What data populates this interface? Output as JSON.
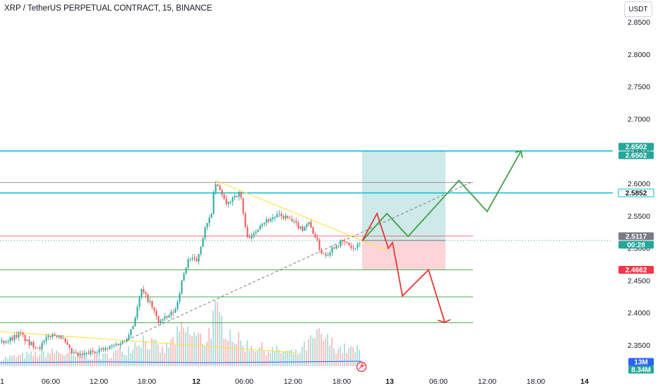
{
  "header": {
    "title": "XRP / TetherUS PERPETUAL CONTRACT, 15, BINANCE",
    "currency_label": "USDT"
  },
  "price_axis": {
    "ticks": [
      2.85,
      2.8,
      2.75,
      2.7,
      2.65,
      2.6,
      2.55,
      2.5,
      2.45,
      2.4,
      2.35
    ],
    "tick_labels": [
      "2.8500",
      "2.8000",
      "2.7500",
      "2.7000",
      "2.6500",
      "2.6000",
      "2.5500",
      "2.5000",
      "2.4500",
      "2.4000",
      "2.3500"
    ]
  },
  "time_axis": {
    "labels": [
      "1",
      "06:00",
      "12:00",
      "18:00",
      "12",
      "06:00",
      "12:00",
      "18:00",
      "13",
      "06:00",
      "12:00",
      "18:00",
      "14"
    ],
    "bold_labels": [
      "12",
      "13",
      "14"
    ]
  },
  "badges": [
    {
      "text": "2.6502",
      "bg": "#26a69a",
      "fg": "#ffffff",
      "price": 2.6502,
      "stack": "upper"
    },
    {
      "text": "2.6502",
      "bg": "#26a69a",
      "fg": "#ffffff",
      "price": 2.6502,
      "stack": "lower"
    },
    {
      "text": "2.5852",
      "bg": "#ffffff",
      "fg": "#131722",
      "border": "#00bcd4",
      "price": 2.5852
    },
    {
      "text": "2.5117",
      "bg": "#787b86",
      "fg": "#ffffff",
      "price": 2.5117,
      "stack": "upper"
    },
    {
      "text": "00:28",
      "bg": "#26a69a",
      "fg": "#ffffff",
      "price": 2.5117,
      "stack": "lower"
    },
    {
      "text": "2.4662",
      "bg": "#f23645",
      "fg": "#ffffff",
      "price": 2.4662
    },
    {
      "text": "13M",
      "bg": "#2962ff",
      "fg": "#ffffff",
      "volume_row": "upper"
    },
    {
      "text": "8.34M",
      "bg": "#26a69a",
      "fg": "#ffffff",
      "volume_row": "lower"
    }
  ],
  "colors": {
    "up": "#26a69a",
    "down": "#ef5350",
    "cyan_line": "#00bcd4",
    "green_line": "#4caf50",
    "red_line": "#f23645",
    "gray_line": "#9598a1",
    "trend_yellow": "#ffe352",
    "target_zone": "#b2dfdb",
    "stop_zone": "#f9c7cb",
    "arrow_green": "#43a047",
    "arrow_red": "#e53935",
    "volume_ma": "#2962ff"
  },
  "chart_data": {
    "type": "candlestick",
    "title": "XRP / TetherUS PERPETUAL CONTRACT, 15, BINANCE",
    "price_range": [
      2.328,
      2.87
    ],
    "horizontal_levels": [
      {
        "price": 2.6502,
        "color": "cyan"
      },
      {
        "price": 2.6015,
        "color": "gray"
      },
      {
        "price": 2.5852,
        "color": "cyan"
      },
      {
        "price": 2.5185,
        "color": "red"
      },
      {
        "price": 2.4662,
        "color": "green"
      },
      {
        "price": 2.4244,
        "color": "green"
      },
      {
        "price": 2.3844,
        "color": "green"
      }
    ],
    "last_price": 2.5117,
    "countdown": "00:28",
    "position": {
      "entry": 2.511,
      "target": 2.6502,
      "stop": 2.4662
    },
    "projected_paths": [
      {
        "direction": "up",
        "points": [
          2.511,
          2.5535,
          2.518,
          2.5555,
          2.5195,
          2.6045,
          2.5565,
          2.6502
        ]
      },
      {
        "direction": "down",
        "points": [
          2.511,
          2.5535,
          2.4995,
          2.5085,
          2.426,
          2.4662,
          2.385
        ]
      }
    ],
    "volume_labels": [
      "13M",
      "8.34M"
    ],
    "candles_anchor_path": [
      [
        0,
        2.355
      ],
      [
        12,
        2.358
      ],
      [
        28,
        2.368
      ],
      [
        40,
        2.352
      ],
      [
        56,
        2.347
      ],
      [
        70,
        2.365
      ],
      [
        84,
        2.366
      ],
      [
        100,
        2.338
      ],
      [
        112,
        2.333
      ],
      [
        124,
        2.337
      ],
      [
        136,
        2.342
      ],
      [
        150,
        2.343
      ],
      [
        162,
        2.35
      ],
      [
        176,
        2.356
      ],
      [
        188,
        2.381
      ],
      [
        200,
        2.435
      ],
      [
        212,
        2.415
      ],
      [
        224,
        2.386
      ],
      [
        236,
        2.392
      ],
      [
        248,
        2.405
      ],
      [
        258,
        2.452
      ],
      [
        266,
        2.483
      ],
      [
        278,
        2.48
      ],
      [
        290,
        2.53
      ],
      [
        298,
        2.548
      ],
      [
        304,
        2.6
      ],
      [
        314,
        2.584
      ],
      [
        320,
        2.565
      ],
      [
        330,
        2.58
      ],
      [
        340,
        2.585
      ],
      [
        348,
        2.522
      ],
      [
        356,
        2.516
      ],
      [
        368,
        2.538
      ],
      [
        380,
        2.544
      ],
      [
        392,
        2.55
      ],
      [
        404,
        2.548
      ],
      [
        416,
        2.538
      ],
      [
        428,
        2.53
      ],
      [
        436,
        2.54
      ],
      [
        446,
        2.518
      ],
      [
        454,
        2.494
      ],
      [
        462,
        2.49
      ],
      [
        472,
        2.502
      ],
      [
        484,
        2.51
      ],
      [
        492,
        2.506
      ],
      [
        500,
        2.498
      ],
      [
        510,
        2.505
      ]
    ],
    "volume_anchor_path": [
      [
        0,
        0.15
      ],
      [
        40,
        0.22
      ],
      [
        80,
        0.28
      ],
      [
        110,
        0.18
      ],
      [
        150,
        0.2
      ],
      [
        180,
        0.35
      ],
      [
        200,
        0.55
      ],
      [
        230,
        0.3
      ],
      [
        258,
        0.7
      ],
      [
        290,
        0.5
      ],
      [
        304,
        1.0
      ],
      [
        340,
        0.45
      ],
      [
        380,
        0.32
      ],
      [
        420,
        0.25
      ],
      [
        450,
        0.6
      ],
      [
        480,
        0.35
      ],
      [
        510,
        0.3
      ]
    ]
  }
}
